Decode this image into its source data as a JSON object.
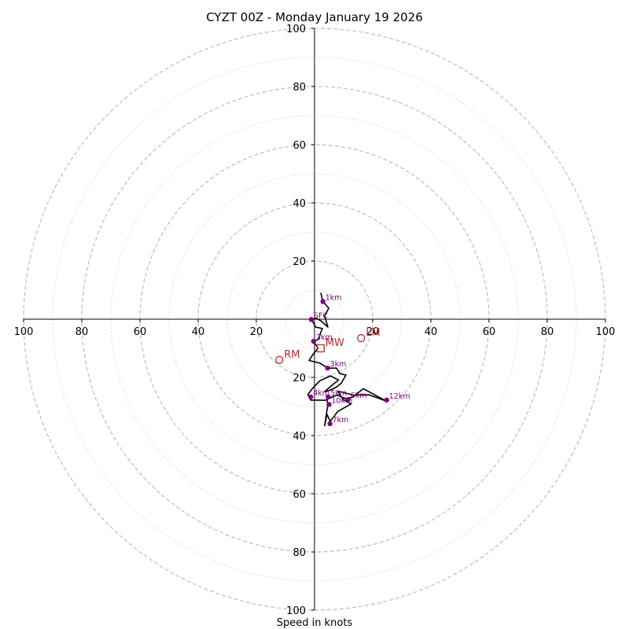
{
  "chart_data": {
    "type": "hodograph",
    "title": "CYZT 00Z - Monday January 19 2026",
    "xlabel": "Speed in knots",
    "max_speed": 100,
    "major_rings": [
      20,
      40,
      60,
      80,
      100
    ],
    "minor_rings": [
      10,
      30,
      50,
      70,
      90
    ],
    "x_ticks": [
      {
        "value": -100,
        "label": "100"
      },
      {
        "value": -80,
        "label": "80"
      },
      {
        "value": -60,
        "label": "60"
      },
      {
        "value": -40,
        "label": "40"
      },
      {
        "value": -20,
        "label": "20"
      },
      {
        "value": 20,
        "label": "20"
      },
      {
        "value": 40,
        "label": "40"
      },
      {
        "value": 60,
        "label": "60"
      },
      {
        "value": 80,
        "label": "80"
      },
      {
        "value": 100,
        "label": "100"
      }
    ],
    "y_ticks": [
      {
        "value": 100,
        "label": "100"
      },
      {
        "value": 80,
        "label": "80"
      },
      {
        "value": 60,
        "label": "60"
      },
      {
        "value": 40,
        "label": "40"
      },
      {
        "value": 20,
        "label": "20"
      },
      {
        "value": -20,
        "label": "20"
      },
      {
        "value": -40,
        "label": "40"
      },
      {
        "value": -60,
        "label": "60"
      },
      {
        "value": -80,
        "label": "80"
      },
      {
        "value": -100,
        "label": "100"
      }
    ],
    "trace": [
      [
        2.2,
        9.1
      ],
      [
        2.8,
        6.2
      ],
      [
        4.9,
        3.8
      ],
      [
        3.5,
        1.1
      ],
      [
        4.6,
        -2.7
      ],
      [
        2.4,
        -0.7
      ],
      [
        0.9,
        0.2
      ],
      [
        -1.1,
        0.1
      ],
      [
        0.4,
        -2.7
      ],
      [
        2.7,
        -3.2
      ],
      [
        2.0,
        -4.9
      ],
      [
        1.5,
        -6.8
      ],
      [
        -0.3,
        -7.6
      ],
      [
        1.2,
        -10.0
      ],
      [
        -0.5,
        -12.1
      ],
      [
        -1.9,
        -14.2
      ],
      [
        1.9,
        -15.1
      ],
      [
        4.6,
        -16.8
      ],
      [
        7.6,
        -16.8
      ],
      [
        8.7,
        -18.7
      ],
      [
        10.8,
        -19.2
      ],
      [
        9.2,
        -22.0
      ],
      [
        7.4,
        -23.4
      ],
      [
        5.1,
        -24.5
      ],
      [
        3.5,
        -24.9
      ],
      [
        6.0,
        -22.7
      ],
      [
        8.3,
        -20.9
      ],
      [
        5.5,
        -19.5
      ],
      [
        1.9,
        -21.1
      ],
      [
        -0.5,
        -23.6
      ],
      [
        -2.3,
        -25.9
      ],
      [
        -1.3,
        -27.8
      ],
      [
        1.9,
        -27.8
      ],
      [
        3.5,
        -27.9
      ],
      [
        5.0,
        -27.3
      ],
      [
        6.5,
        -26.5
      ],
      [
        8.0,
        -26.1
      ],
      [
        9.5,
        -26.8
      ],
      [
        11.0,
        -27.3
      ],
      [
        13.0,
        -26.8
      ],
      [
        16.8,
        -23.9
      ],
      [
        24.6,
        -28.1
      ],
      [
        18.8,
        -26.0
      ],
      [
        13.4,
        -26.1
      ],
      [
        8.0,
        -24.7
      ],
      [
        9.8,
        -27.6
      ],
      [
        12.6,
        -29.1
      ],
      [
        8.0,
        -31.7
      ],
      [
        5.4,
        -35.1
      ],
      [
        4.3,
        -32.7
      ],
      [
        3.5,
        -36.6
      ],
      [
        4.6,
        -29.3
      ],
      [
        4.3,
        -27.8
      ]
    ],
    "height_markers": [
      {
        "label": "1km",
        "u": 2.9,
        "v": 6.1
      },
      {
        "label": "SFC",
        "u": -1.1,
        "v": -0.1
      },
      {
        "label": "2km",
        "u": -0.3,
        "v": -7.6
      },
      {
        "label": "3km",
        "u": 4.5,
        "v": -16.8
      },
      {
        "label": "4km",
        "u": -1.3,
        "v": -26.7
      },
      {
        "label": "5km",
        "u": 4.7,
        "v": -26.7
      },
      {
        "label": "10km",
        "u": 5.0,
        "v": -29.3
      },
      {
        "label": "6km",
        "u": 11.5,
        "v": -27.6
      },
      {
        "label": "12km",
        "u": 24.8,
        "v": -27.8
      },
      {
        "label": "7km",
        "u": 5.3,
        "v": -35.9
      }
    ],
    "storm_motions": [
      {
        "label": "MW",
        "u": 2.1,
        "v": -10.0,
        "marker": "square"
      },
      {
        "label": "LM",
        "u": 16.0,
        "v": -6.5,
        "marker": "circle"
      },
      {
        "label": "RM",
        "u": -12.1,
        "v": -14.0,
        "marker": "circle"
      }
    ],
    "colors": {
      "ring": "#bdbdbd",
      "axis": "#000000",
      "trace": "#000000",
      "marker": "#800080",
      "storm": "#c62828"
    }
  }
}
